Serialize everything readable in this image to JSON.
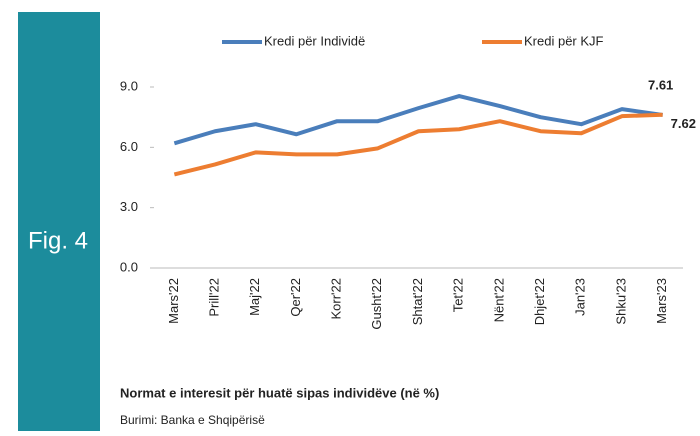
{
  "figure_label": "Fig. 4",
  "chart_data": {
    "type": "line",
    "categories": [
      "Mars'22",
      "Prill'22",
      "Maj'22",
      "Qer'22",
      "Korr'22",
      "Gusht'22",
      "Shtat'22",
      "Tet'22",
      "Nënt'22",
      "Dhjet'22",
      "Jan'23",
      "Shku'23",
      "Mars'23"
    ],
    "series": [
      {
        "name": "Kredi për Individë",
        "color": "#4a7ebb",
        "values": [
          6.2,
          6.8,
          7.15,
          6.65,
          7.3,
          7.3,
          7.95,
          8.55,
          8.05,
          7.5,
          7.15,
          7.9,
          7.61
        ]
      },
      {
        "name": "Kredi për KJF",
        "color": "#ed7d31",
        "values": [
          4.65,
          5.15,
          5.75,
          5.65,
          5.65,
          5.95,
          6.8,
          6.9,
          7.3,
          6.8,
          6.7,
          7.55,
          7.62
        ]
      }
    ],
    "ylim": [
      0,
      9
    ],
    "yticks": [
      {
        "value": 0,
        "label": "0.0"
      },
      {
        "value": 3,
        "label": "3.0"
      },
      {
        "value": 6,
        "label": "6.0"
      },
      {
        "value": 9,
        "label": "9.0"
      }
    ],
    "grid": false,
    "legend": "top",
    "caption": "Normat e interesit për huatë sipas  individëve (në %)",
    "source": "Burimi: Banka e Shqipërisë"
  }
}
